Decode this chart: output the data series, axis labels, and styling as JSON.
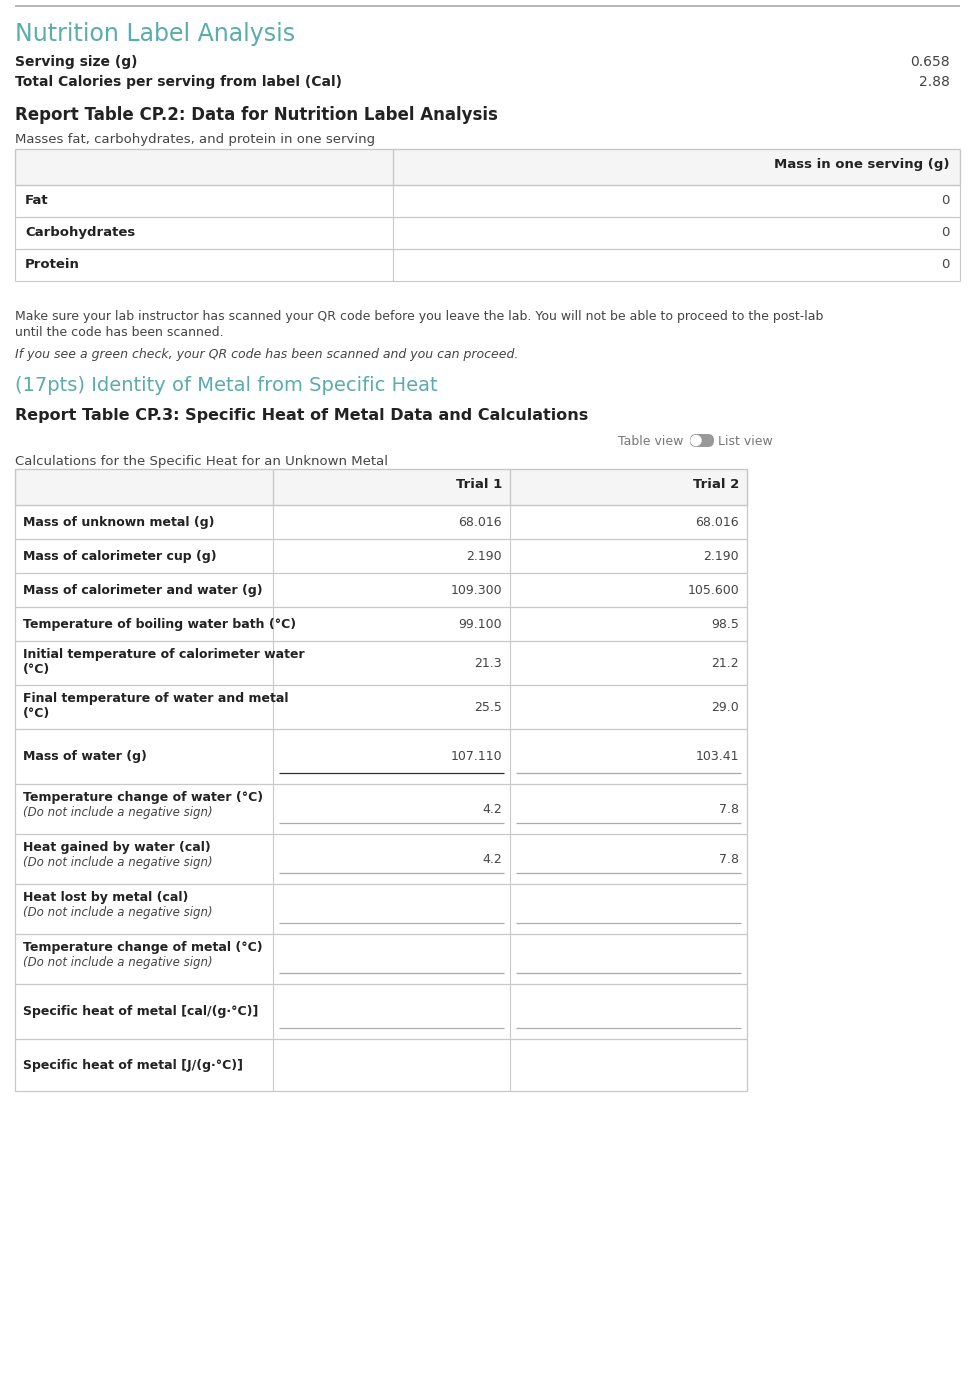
{
  "title_nutrition": "Nutrition Label Analysis",
  "serving_size_label": "Serving size (g)",
  "serving_size_value": "0.658",
  "calories_label": "Total Calories per serving from label (Cal)",
  "calories_value": "2.88",
  "report_table_cp2_title": "Report Table CP.2: Data for Nutrition Label Analysis",
  "cp2_subtitle": "Masses fat, carbohydrates, and protein in one serving",
  "cp2_col_header": "Mass in one serving (g)",
  "cp2_rows": [
    {
      "label": "Fat",
      "value": "0"
    },
    {
      "label": "Carbohydrates",
      "value": "0"
    },
    {
      "label": "Protein",
      "value": "0"
    }
  ],
  "qr_note1a": "Make sure your lab instructor has scanned your QR code before you leave the lab. You will not be able to proceed to the post-lab",
  "qr_note1b": "until the code has been scanned.",
  "qr_note2": "If you see a green check, your QR code has been scanned and you can proceed.",
  "title_metal": "(17pts) Identity of Metal from Specific Heat",
  "report_table_cp3_title": "Report Table CP.3: Specific Heat of Metal Data and Calculations",
  "table_view_label": "Table view",
  "list_view_label": "List view",
  "cp3_subtitle": "Calculations for the Specific Heat for an Unknown Metal",
  "cp3_col1": "Trial 1",
  "cp3_col2": "Trial 2",
  "cp3_rows": [
    {
      "label": "Mass of unknown metal (g)",
      "sub": "",
      "t1": "68.016",
      "t2": "68.016",
      "has_underline": false,
      "t1_dark": false
    },
    {
      "label": "Mass of calorimeter cup (g)",
      "sub": "",
      "t1": "2.190",
      "t2": "2.190",
      "has_underline": false,
      "t1_dark": false
    },
    {
      "label": "Mass of calorimeter and water (g)",
      "sub": "",
      "t1": "109.300",
      "t2": "105.600",
      "has_underline": false,
      "t1_dark": false
    },
    {
      "label": "Temperature of boiling water bath (°C)",
      "sub": "",
      "t1": "99.100",
      "t2": "98.5",
      "has_underline": false,
      "t1_dark": false
    },
    {
      "label": "Initial temperature of calorimeter water",
      "sub": "(°C)",
      "t1": "21.3",
      "t2": "21.2",
      "has_underline": false,
      "t1_dark": false
    },
    {
      "label": "Final temperature of water and metal",
      "sub": "(°C)",
      "t1": "25.5",
      "t2": "29.0",
      "has_underline": false,
      "t1_dark": false
    },
    {
      "label": "Mass of water (g)",
      "sub": "",
      "t1": "107.110",
      "t2": "103.41",
      "has_underline": true,
      "t1_dark": true
    },
    {
      "label": "Temperature change of water (°C)",
      "sub": "(Do not include a negative sign)",
      "t1": "4.2",
      "t2": "7.8",
      "has_underline": true,
      "t1_dark": false
    },
    {
      "label": "Heat gained by water (cal)",
      "sub": "(Do not include a negative sign)",
      "t1": "4.2",
      "t2": "7.8",
      "has_underline": true,
      "t1_dark": false
    },
    {
      "label": "Heat lost by metal (cal)",
      "sub": "(Do not include a negative sign)",
      "t1": "",
      "t2": "",
      "has_underline": true,
      "t1_dark": false
    },
    {
      "label": "Temperature change of metal (°C)",
      "sub": "(Do not include a negative sign)",
      "t1": "",
      "t2": "",
      "has_underline": true,
      "t1_dark": false
    },
    {
      "label": "Specific heat of metal [cal/(g·°C)]",
      "sub": "",
      "t1": "",
      "t2": "",
      "has_underline": true,
      "t1_dark": false
    },
    {
      "label": "Specific heat of metal [J/(g·°C)]",
      "sub": "",
      "t1": "",
      "t2": "",
      "has_underline": false,
      "t1_dark": false
    }
  ],
  "teal_color": "#5aacad",
  "border_color": "#c8c8c8",
  "text_color": "#444444",
  "bold_color": "#222222",
  "bg_color": "#ffffff",
  "toggle_color": "#888888"
}
